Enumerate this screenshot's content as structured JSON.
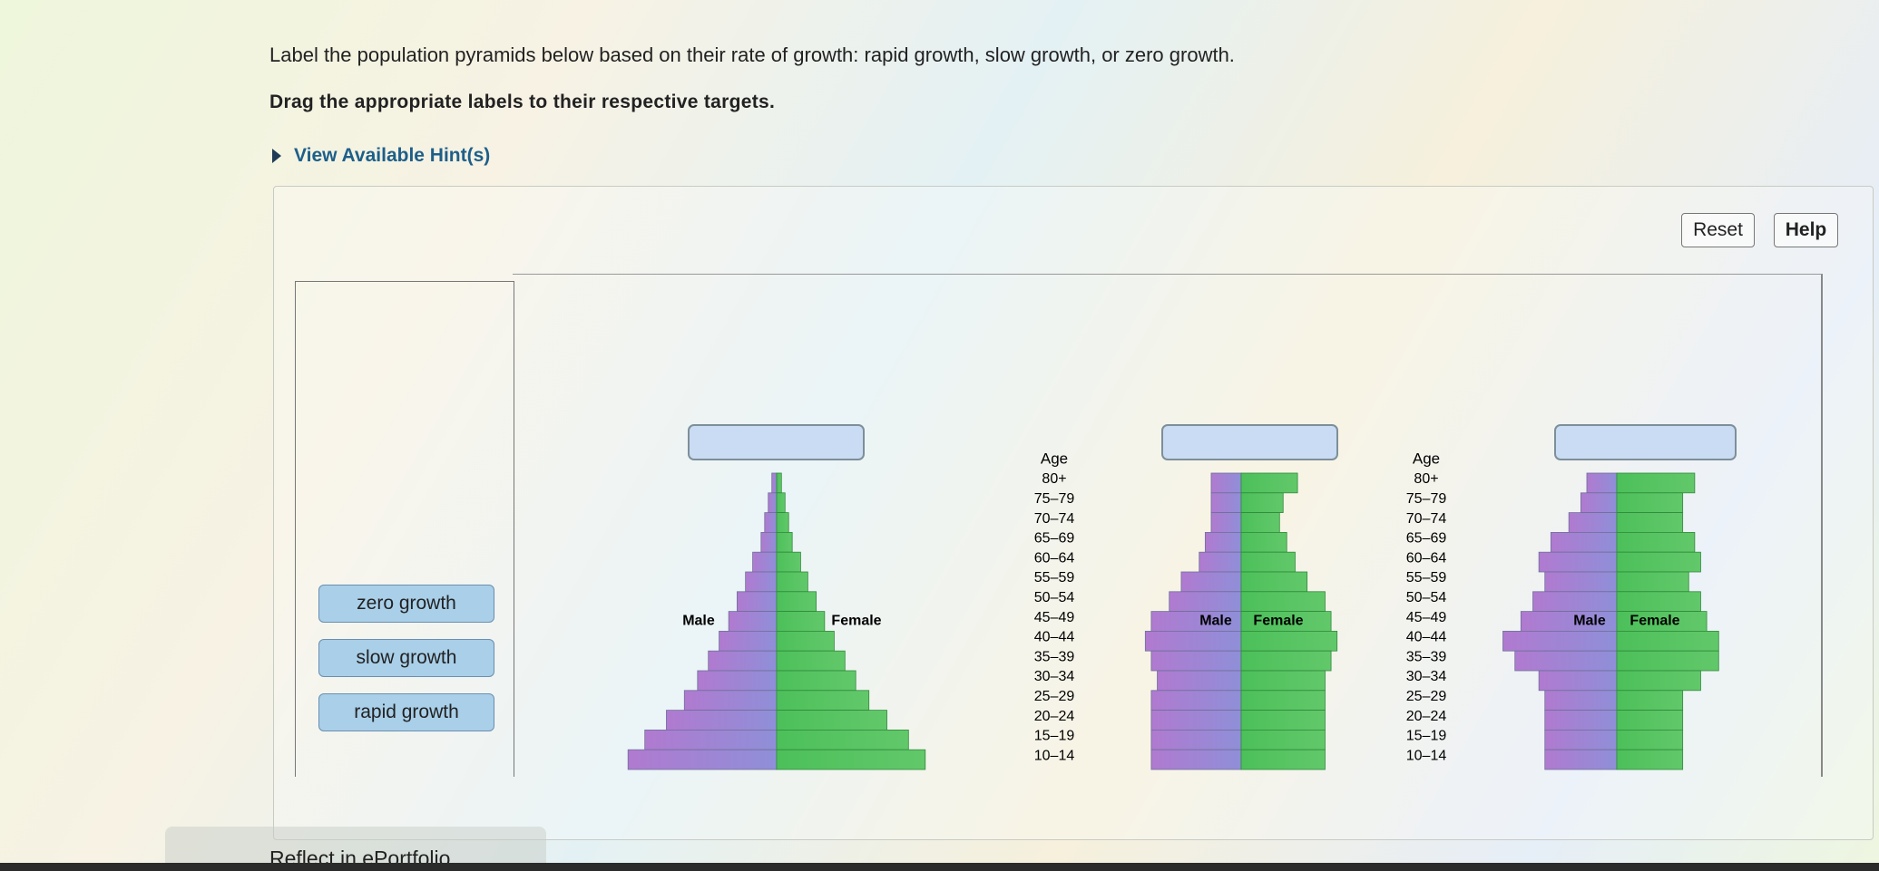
{
  "instructions": "Label the population pyramids below based on their rate of growth: rapid growth, slow growth, or zero growth.",
  "directions": "Drag the appropriate labels to their respective targets.",
  "hint_toggle": "View Available Hint(s)",
  "toolbar": {
    "reset": "Reset",
    "help": "Help"
  },
  "labels": [
    "zero growth",
    "slow growth",
    "rapid growth"
  ],
  "pyramids": [
    {
      "male_label": "Male",
      "female_label": "Female"
    },
    {
      "male_label": "Male",
      "female_label": "Female"
    },
    {
      "male_label": "Male",
      "female_label": "Female"
    }
  ],
  "age_axes": [
    {
      "title": "Age",
      "groups": [
        "80+",
        "75–79",
        "70–74",
        "65–69",
        "60–64",
        "55–59",
        "50–54",
        "45–49",
        "40–44",
        "35–39",
        "30–34",
        "25–29",
        "20–24",
        "15–19",
        "10–14"
      ]
    },
    {
      "title": "Age",
      "groups": [
        "80+",
        "75–79",
        "70–74",
        "65–69",
        "60–64",
        "55–59",
        "50–54",
        "45–49",
        "40–44",
        "35–39",
        "30–34",
        "25–29",
        "20–24",
        "15–19",
        "10–14"
      ]
    }
  ],
  "footer": "Reflect in ePortfolio"
}
